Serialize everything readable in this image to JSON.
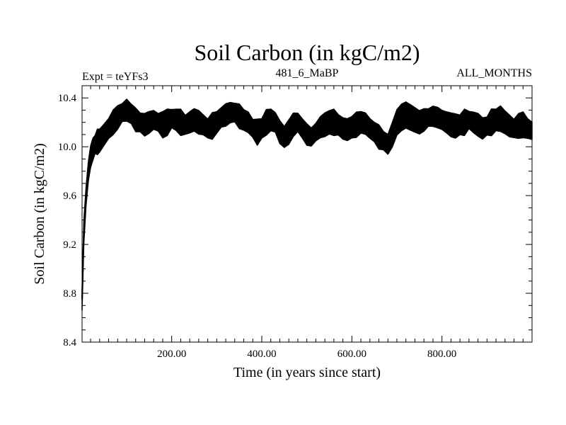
{
  "chart_data": {
    "type": "line",
    "title": "Soil Carbon (in kgC/m2)",
    "subtitle_left": "Expt = teYFs3",
    "subtitle_center": "481_6_MaBP",
    "subtitle_right": "ALL_MONTHS",
    "xlabel": "Time (in years since start)",
    "ylabel": "Soil Carbon (in kgC/m2)",
    "xlim": [
      1,
      1000
    ],
    "ylim": [
      8.4,
      10.5
    ],
    "xticks": [
      {
        "value": 200,
        "label": "200.00"
      },
      {
        "value": 400,
        "label": "400.00"
      },
      {
        "value": 600,
        "label": "600.00"
      },
      {
        "value": 800,
        "label": "800.00"
      }
    ],
    "yticks": [
      {
        "value": 8.4,
        "label": "8.4"
      },
      {
        "value": 8.8,
        "label": "8.8"
      },
      {
        "value": 9.2,
        "label": "9.2"
      },
      {
        "value": 9.6,
        "label": "9.6"
      },
      {
        "value": 10.0,
        "label": "10.0"
      },
      {
        "value": 10.4,
        "label": "10.4"
      }
    ],
    "grid": false,
    "line_color": "#000000",
    "series": [
      {
        "x": [
          1,
          5,
          10,
          15,
          20,
          25,
          30,
          35,
          40,
          50,
          60,
          70,
          80,
          90,
          100,
          110,
          120,
          130,
          140,
          150,
          160,
          170,
          180,
          190,
          200,
          210,
          220,
          230,
          240,
          250,
          260,
          270,
          280,
          290,
          300,
          310,
          320,
          330,
          340,
          350,
          360,
          370,
          380,
          390,
          400,
          410,
          420,
          430,
          440,
          450,
          460,
          470,
          480,
          490,
          500,
          510,
          520,
          530,
          540,
          550,
          560,
          570,
          580,
          590,
          600,
          610,
          620,
          630,
          640,
          650,
          660,
          670,
          680,
          690,
          700,
          710,
          720,
          730,
          740,
          750,
          760,
          770,
          780,
          790,
          800,
          810,
          820,
          830,
          840,
          850,
          860,
          870,
          880,
          890,
          900,
          910,
          920,
          930,
          940,
          950,
          960,
          970,
          980,
          990,
          1000
        ],
        "values": [
          8.75,
          9.3,
          9.6,
          9.8,
          9.92,
          9.98,
          10.02,
          10.04,
          10.05,
          10.1,
          10.15,
          10.2,
          10.24,
          10.28,
          10.3,
          10.27,
          10.22,
          10.2,
          10.18,
          10.2,
          10.22,
          10.2,
          10.18,
          10.2,
          10.23,
          10.22,
          10.2,
          10.18,
          10.2,
          10.22,
          10.2,
          10.18,
          10.15,
          10.17,
          10.2,
          10.24,
          10.26,
          10.28,
          10.28,
          10.25,
          10.22,
          10.2,
          10.15,
          10.12,
          10.15,
          10.2,
          10.22,
          10.2,
          10.12,
          10.08,
          10.12,
          10.18,
          10.2,
          10.15,
          10.1,
          10.08,
          10.12,
          10.16,
          10.18,
          10.2,
          10.2,
          10.18,
          10.15,
          10.14,
          10.16,
          10.18,
          10.2,
          10.19,
          10.15,
          10.12,
          10.08,
          10.05,
          10.02,
          10.1,
          10.2,
          10.24,
          10.26,
          10.24,
          10.22,
          10.2,
          10.22,
          10.24,
          10.25,
          10.24,
          10.22,
          10.2,
          10.18,
          10.17,
          10.18,
          10.2,
          10.22,
          10.2,
          10.18,
          10.15,
          10.17,
          10.2,
          10.22,
          10.23,
          10.2,
          10.17,
          10.15,
          10.17,
          10.18,
          10.15,
          10.13
        ]
      }
    ]
  }
}
